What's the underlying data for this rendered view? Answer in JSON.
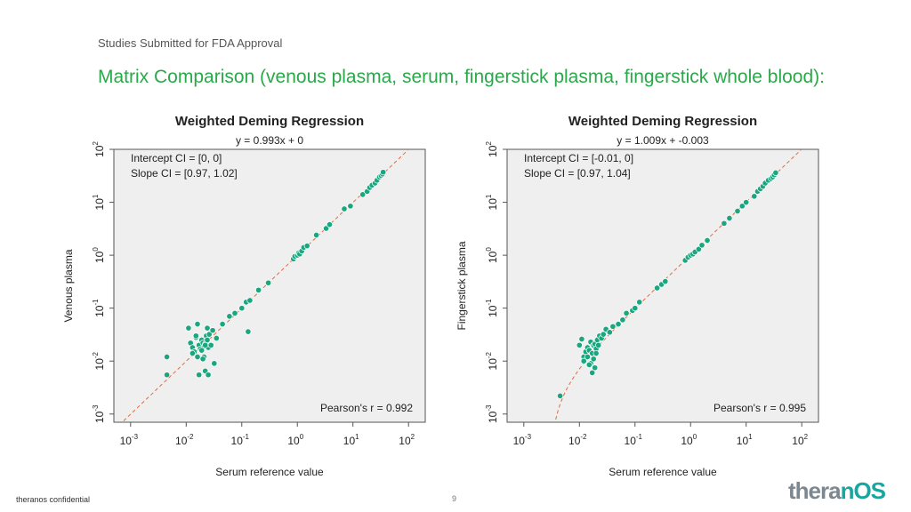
{
  "header": {
    "subtitle": "Studies Submitted for FDA Approval",
    "headline": "Matrix Comparison (venous plasma, serum, fingerstick plasma, fingerstick whole blood):"
  },
  "footer": {
    "confidential": "theranos confidential",
    "page_number": "9",
    "logo_main": "thera",
    "logo_accent": "nOS"
  },
  "colors": {
    "headline": "#2aa84a",
    "point": "#1aa67f",
    "regression_line": "#e36b3c",
    "panel_bg": "#efefef"
  },
  "chart_data": [
    {
      "type": "scatter",
      "title": "Weighted Deming Regression",
      "equation": "y = 0.993x + 0",
      "annotations": [
        "Intercept CI = [0, 0]",
        "Slope CI = [0.97, 1.02]"
      ],
      "pearson": "Pearson's r = 0.992",
      "xlabel": "Serum reference value",
      "ylabel": "Venous plasma",
      "xscale": "log",
      "yscale": "log",
      "xlim": [
        0.0005,
        200
      ],
      "ylim": [
        0.0007,
        100
      ],
      "xticks": [
        {
          "base": "10",
          "exp": "-3"
        },
        {
          "base": "10",
          "exp": "-2"
        },
        {
          "base": "10",
          "exp": "-1"
        },
        {
          "base": "10",
          "exp": "0"
        },
        {
          "base": "10",
          "exp": "1"
        },
        {
          "base": "10",
          "exp": "2"
        }
      ],
      "yticks": [
        {
          "base": "10",
          "exp": "-3"
        },
        {
          "base": "10",
          "exp": "-2"
        },
        {
          "base": "10",
          "exp": "-1"
        },
        {
          "base": "10",
          "exp": "0"
        },
        {
          "base": "10",
          "exp": "1"
        },
        {
          "base": "10",
          "exp": "2"
        }
      ],
      "regression": {
        "slope": 0.993,
        "intercept": 0
      },
      "x": [
        0.0045,
        0.0045,
        0.011,
        0.012,
        0.013,
        0.014,
        0.015,
        0.016,
        0.017,
        0.018,
        0.019,
        0.02,
        0.021,
        0.022,
        0.023,
        0.024,
        0.025,
        0.026,
        0.028,
        0.03,
        0.013,
        0.016,
        0.019,
        0.022,
        0.025,
        0.032,
        0.017,
        0.021,
        0.024,
        0.015,
        0.02,
        0.022,
        0.035,
        0.045,
        0.06,
        0.075,
        0.1,
        0.12,
        0.14,
        0.13,
        0.2,
        0.3,
        0.85,
        0.9,
        1.0,
        1.05,
        1.1,
        1.2,
        1.3,
        1.5,
        2.2,
        3.3,
        3.8,
        7,
        9,
        15,
        18,
        20,
        22,
        25,
        27,
        30,
        32,
        34,
        35
      ],
      "y": [
        0.012,
        0.0055,
        0.042,
        0.022,
        0.018,
        0.015,
        0.028,
        0.05,
        0.02,
        0.017,
        0.025,
        0.022,
        0.019,
        0.021,
        0.03,
        0.025,
        0.018,
        0.032,
        0.02,
        0.038,
        0.014,
        0.012,
        0.016,
        0.0065,
        0.0055,
        0.009,
        0.0055,
        0.012,
        0.042,
        0.03,
        0.011,
        0.02,
        0.027,
        0.05,
        0.07,
        0.08,
        0.1,
        0.13,
        0.14,
        0.036,
        0.22,
        0.3,
        0.85,
        0.95,
        1.0,
        1.1,
        1.05,
        1.2,
        1.4,
        1.5,
        2.4,
        3.2,
        3.8,
        7.5,
        8.5,
        14,
        16,
        19,
        21,
        23,
        26,
        30,
        32,
        34,
        37
      ]
    },
    {
      "type": "scatter",
      "title": "Weighted Deming Regression",
      "equation": "y = 1.009x + -0.003",
      "annotations": [
        "Intercept CI = [-0.01, 0]",
        "Slope CI = [0.97, 1.04]"
      ],
      "pearson": "Pearson's r = 0.995",
      "xlabel": "Serum reference value",
      "ylabel": "Fingerstick plasma",
      "xscale": "log",
      "yscale": "log",
      "xlim": [
        0.0005,
        200
      ],
      "ylim": [
        0.0007,
        100
      ],
      "xticks": [
        {
          "base": "10",
          "exp": "-3"
        },
        {
          "base": "10",
          "exp": "-2"
        },
        {
          "base": "10",
          "exp": "-1"
        },
        {
          "base": "10",
          "exp": "0"
        },
        {
          "base": "10",
          "exp": "1"
        },
        {
          "base": "10",
          "exp": "2"
        }
      ],
      "yticks": [
        {
          "base": "10",
          "exp": "-3"
        },
        {
          "base": "10",
          "exp": "-2"
        },
        {
          "base": "10",
          "exp": "-1"
        },
        {
          "base": "10",
          "exp": "0"
        },
        {
          "base": "10",
          "exp": "1"
        },
        {
          "base": "10",
          "exp": "2"
        }
      ],
      "regression": {
        "slope": 1.009,
        "intercept": -0.003
      },
      "x": [
        0.0045,
        0.01,
        0.011,
        0.012,
        0.013,
        0.014,
        0.015,
        0.016,
        0.017,
        0.018,
        0.019,
        0.02,
        0.021,
        0.022,
        0.023,
        0.025,
        0.027,
        0.03,
        0.014,
        0.016,
        0.018,
        0.02,
        0.015,
        0.017,
        0.019,
        0.012,
        0.035,
        0.04,
        0.05,
        0.06,
        0.07,
        0.09,
        0.1,
        0.12,
        0.25,
        0.3,
        0.35,
        0.8,
        0.9,
        1.0,
        1.1,
        1.2,
        1.4,
        1.6,
        2.0,
        4,
        5,
        7,
        8.5,
        10,
        14,
        16,
        18,
        20,
        22,
        25,
        28,
        30,
        32,
        34
      ],
      "y": [
        0.0022,
        0.02,
        0.026,
        0.012,
        0.015,
        0.018,
        0.016,
        0.023,
        0.014,
        0.02,
        0.021,
        0.017,
        0.025,
        0.02,
        0.03,
        0.027,
        0.032,
        0.04,
        0.012,
        0.009,
        0.011,
        0.014,
        0.0085,
        0.006,
        0.0075,
        0.01,
        0.035,
        0.045,
        0.05,
        0.06,
        0.08,
        0.09,
        0.1,
        0.13,
        0.24,
        0.28,
        0.32,
        0.8,
        0.92,
        1.0,
        1.05,
        1.15,
        1.3,
        1.55,
        1.9,
        4,
        5,
        6.8,
        8.5,
        10,
        13,
        16,
        18,
        20,
        23,
        26,
        28,
        30,
        33,
        36
      ]
    }
  ]
}
